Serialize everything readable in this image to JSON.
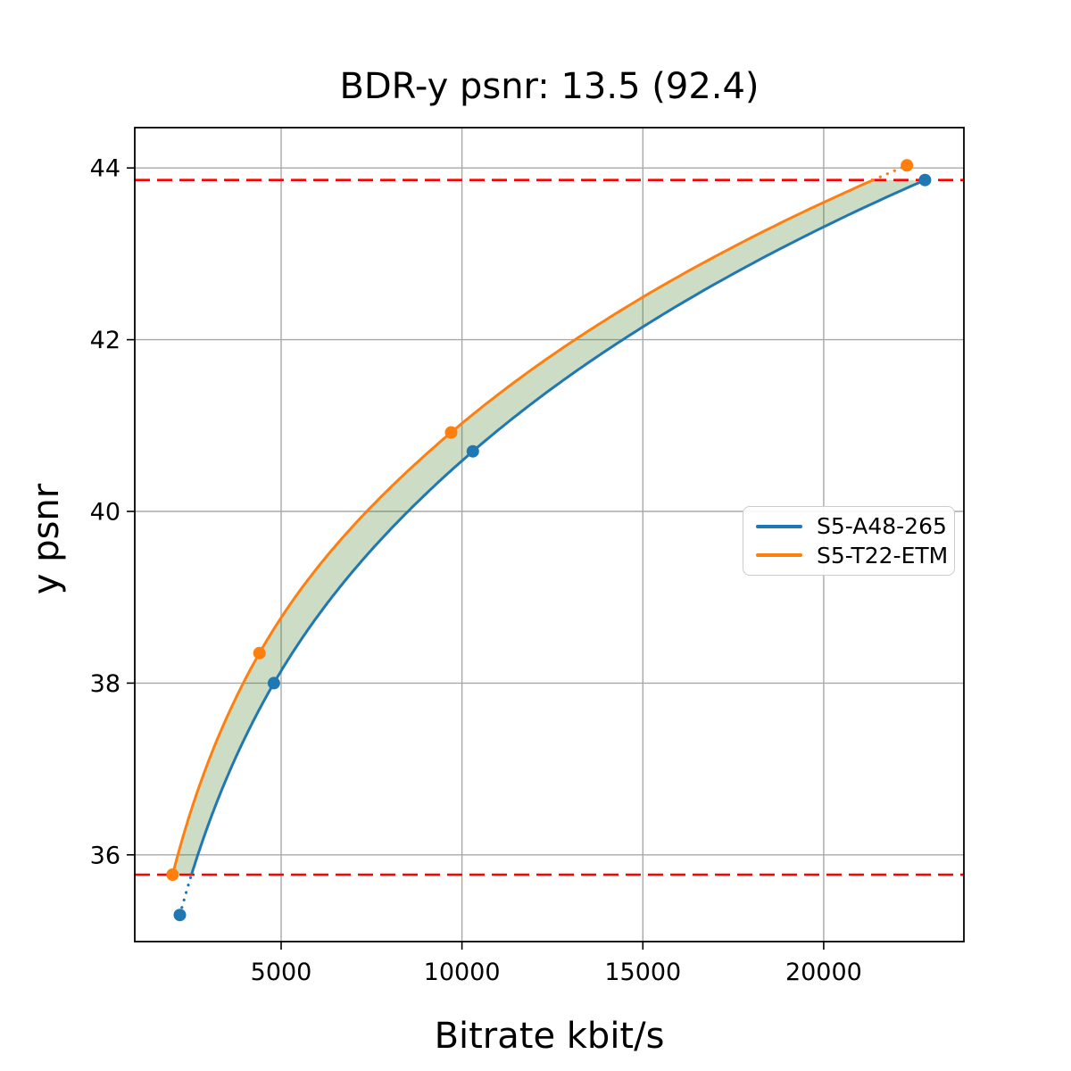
{
  "figure": {
    "title": "BDR-y psnr: 13.5 (92.4)",
    "xlabel": "Bitrate kbit/s",
    "ylabel": "y psnr"
  },
  "legend": {
    "items": [
      {
        "label": "S5-A48-265",
        "color": "#1f77b4"
      },
      {
        "label": "S5-T22-ETM",
        "color": "#ff7f0e"
      }
    ]
  },
  "chart_data": {
    "type": "line",
    "title": "BDR-y psnr: 13.5 (92.4)",
    "xlabel": "Bitrate kbit/s",
    "ylabel": "y psnr",
    "xlim": [
      954,
      23875
    ],
    "ylim": [
      34.99,
      44.47
    ],
    "x_ticks": [
      5000,
      10000,
      15000,
      20000
    ],
    "x_tick_labels": [
      "5000",
      "10000",
      "15000",
      "20000"
    ],
    "y_ticks": [
      36,
      38,
      40,
      42,
      44
    ],
    "y_tick_labels": [
      "36",
      "38",
      "40",
      "42",
      "44"
    ],
    "grid": true,
    "grid_color": "#a8a8a8",
    "legend_position": "center right",
    "interpolation": "pchip-log-x",
    "series": [
      {
        "name": "S5-A48-265",
        "color": "#1f77b4",
        "x": [
          2200,
          4800,
          10300,
          22800
        ],
        "y": [
          35.3,
          38.0,
          40.7,
          43.86
        ]
      },
      {
        "name": "S5-T22-ETM",
        "color": "#ff7f0e",
        "x": [
          2000,
          4400,
          9700,
          22300
        ],
        "y": [
          35.77,
          38.35,
          40.92,
          44.03
        ]
      }
    ],
    "overlap_bounds": {
      "low": 35.77,
      "high": 43.86,
      "line_color": "#ff0000",
      "line_style": "dashed"
    },
    "fill_between_color": "rgba(70,130,40,0.27)"
  }
}
